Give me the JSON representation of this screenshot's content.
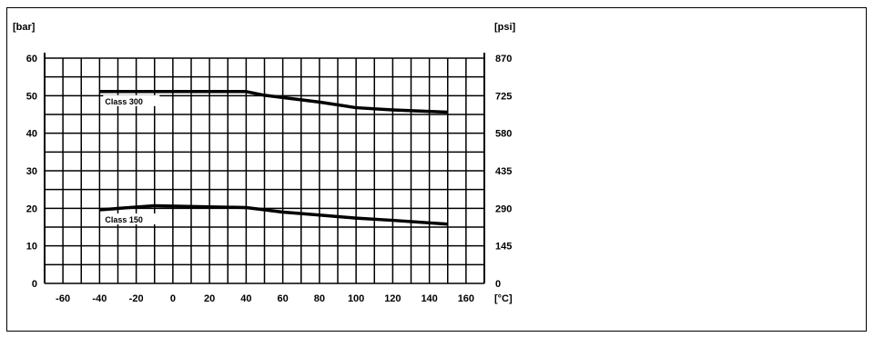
{
  "chart_data": {
    "type": "line",
    "xunit": "[°C]",
    "yunit_left": "[bar]",
    "yunit_right": "[psi]",
    "xticks": [
      -60,
      -40,
      -20,
      0,
      20,
      40,
      60,
      80,
      100,
      120,
      140,
      160
    ],
    "xlim": [
      -70,
      170
    ],
    "ylim": [
      0,
      60
    ],
    "yticks_left": [
      0,
      10,
      20,
      30,
      40,
      50,
      60
    ],
    "yticks_right": [
      "0",
      "145",
      "290",
      "435",
      "580",
      "725",
      "870"
    ],
    "grid": true,
    "series": [
      {
        "name": "Class 300",
        "x": [
          -40,
          0,
          40,
          50,
          60,
          80,
          100,
          120,
          150
        ],
        "y": [
          51.1,
          51.1,
          51.1,
          50.1,
          49.5,
          48.3,
          46.8,
          46.2,
          45.6
        ]
      },
      {
        "name": "Class 150",
        "x": [
          -40,
          -10,
          40,
          60,
          80,
          100,
          120,
          150
        ],
        "y": [
          19.6,
          20.7,
          20.2,
          19.0,
          18.2,
          17.4,
          16.8,
          15.8
        ]
      }
    ]
  }
}
